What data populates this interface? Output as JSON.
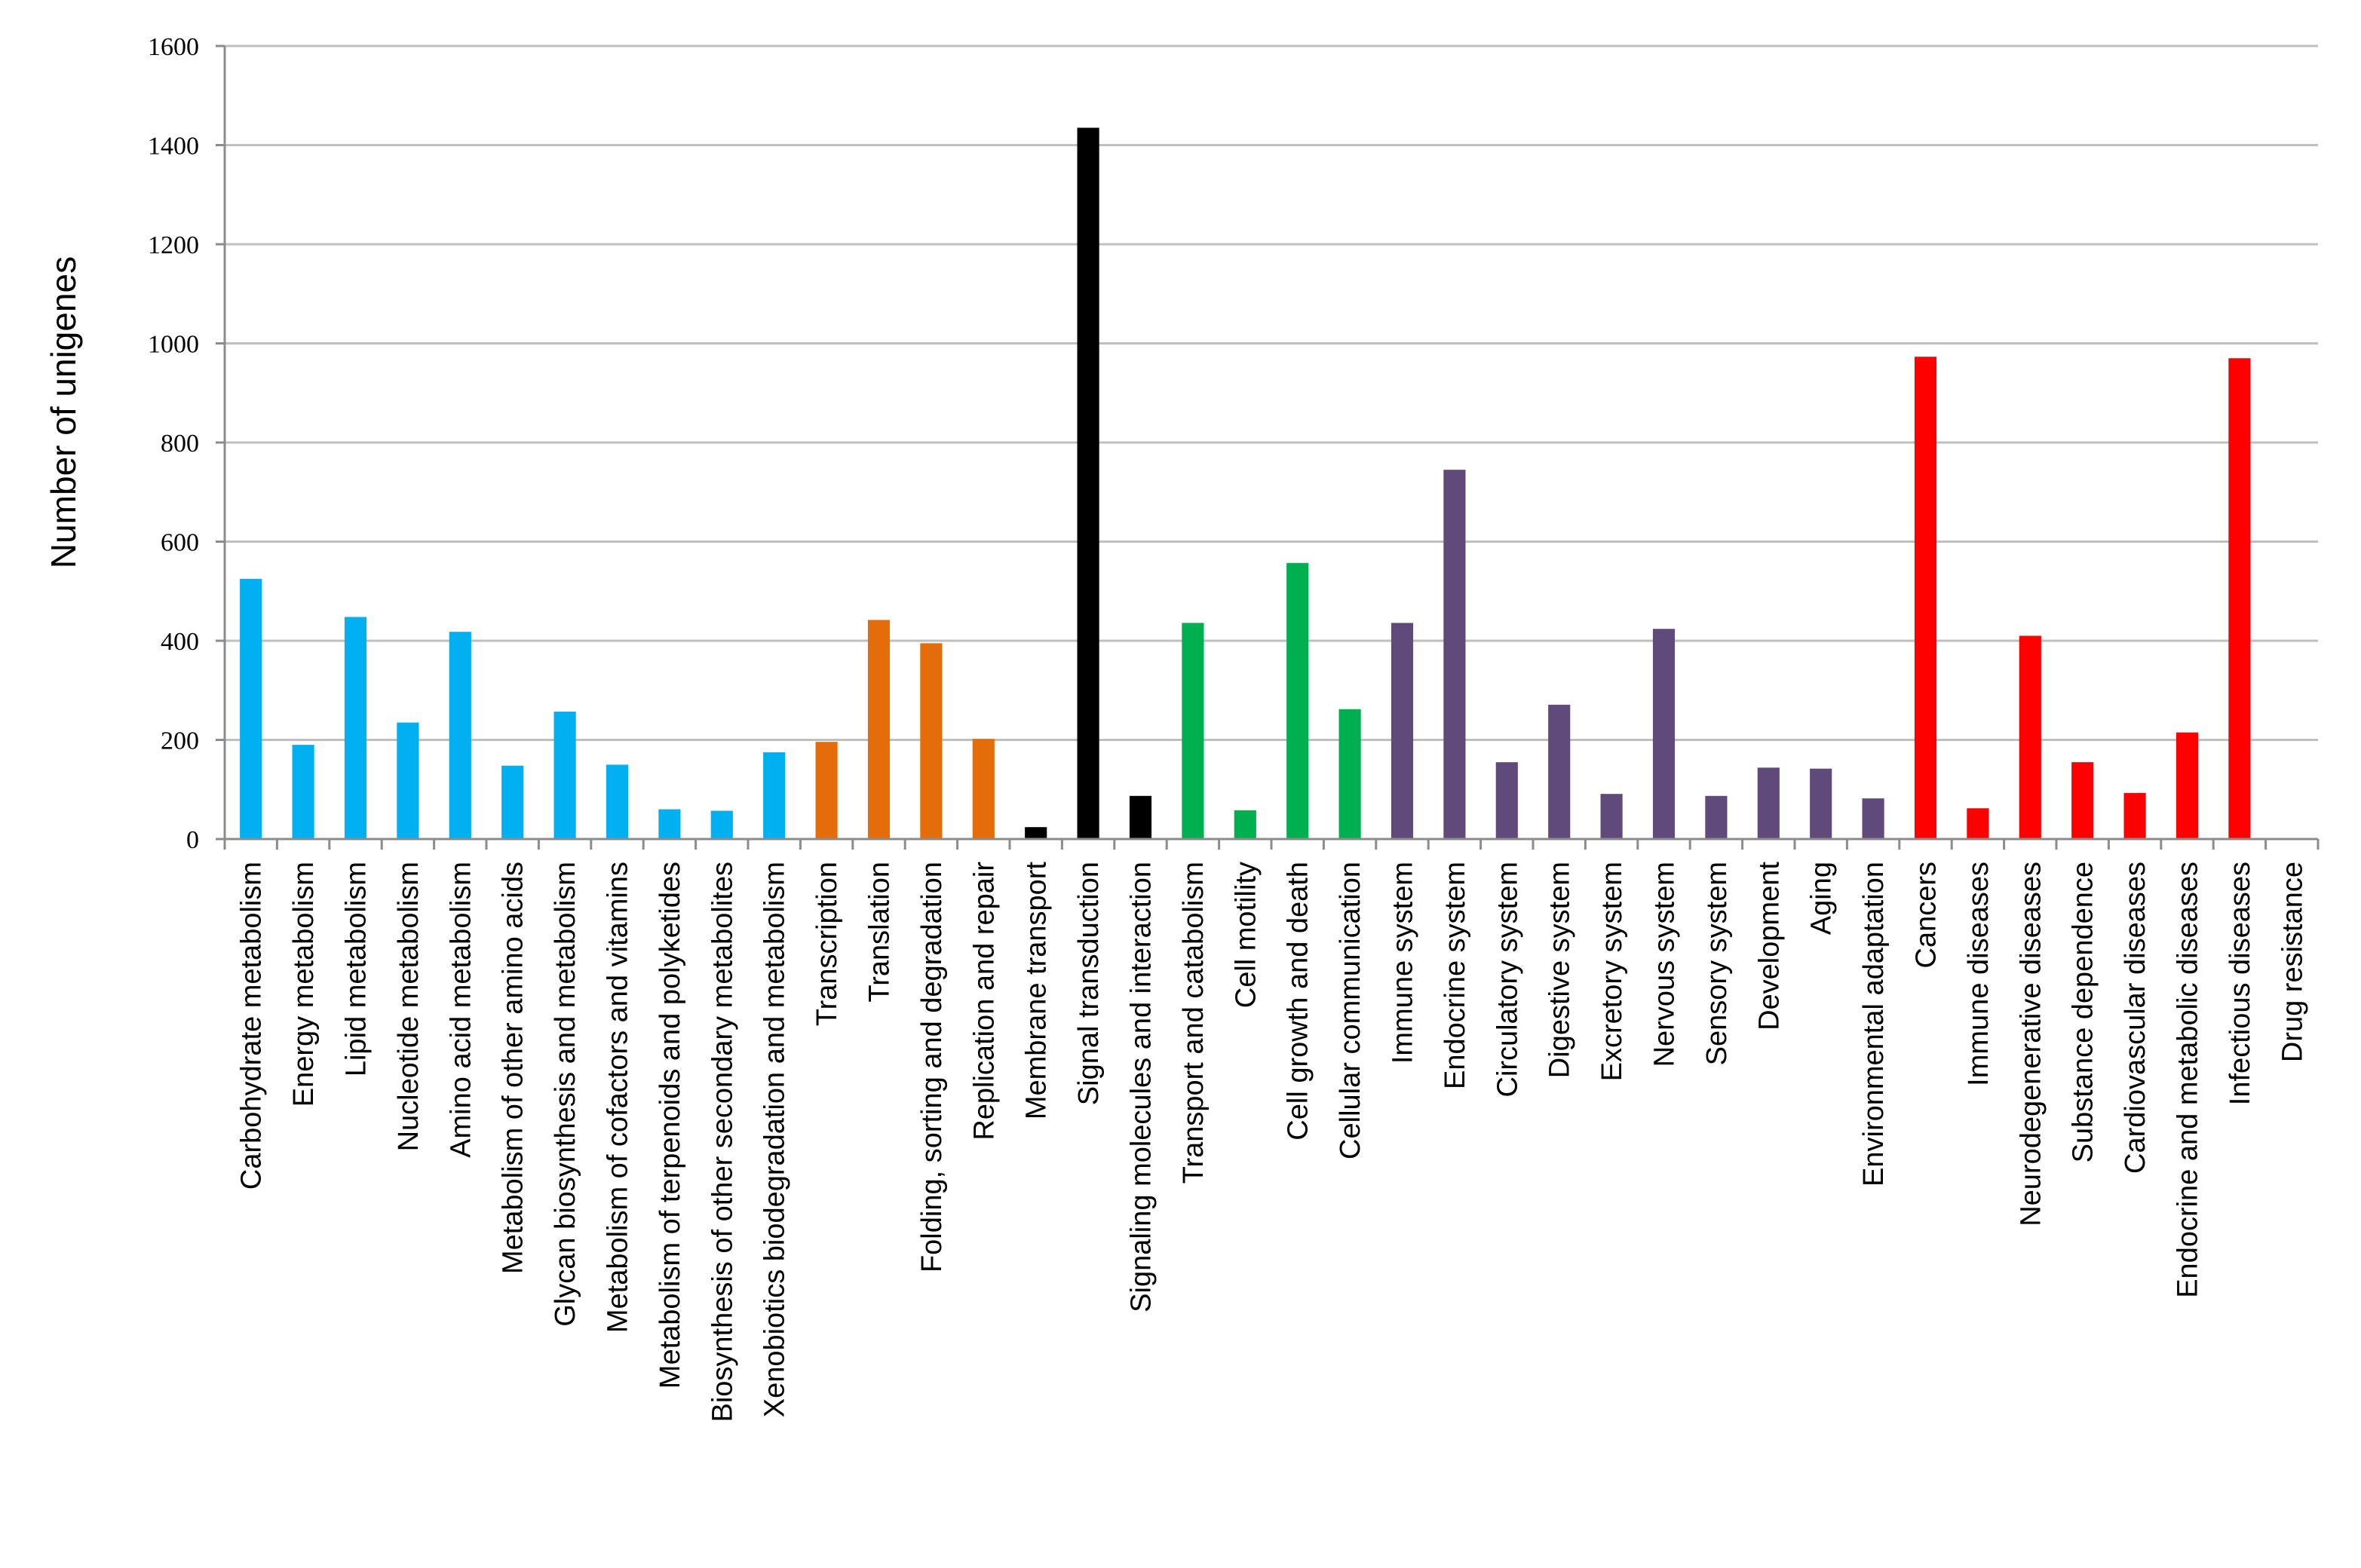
{
  "chart_data": {
    "type": "bar",
    "title": "",
    "xlabel": "",
    "ylabel": "Number of unigenes",
    "ylim": [
      0,
      1600
    ],
    "yticks": [
      0,
      200,
      400,
      600,
      800,
      1000,
      1200,
      1400,
      1600
    ],
    "grid": true,
    "legend": "none",
    "categories": [
      "Carbohydrate metabolism",
      "Energy metabolism",
      "Lipid metabolism",
      "Nucleotide metabolism",
      "Amino acid metabolism",
      "Metabolism of other amino acids",
      "Glycan biosynthesis and metabolism",
      "Metabolism of cofactors and vitamins",
      "Metabolism of terpenoids and polyketides",
      "Biosynthesis of other secondary metabolites",
      "Xenobiotics biodegradation and metabolism",
      "Transcription",
      "Translation",
      "Folding, sorting and degradation",
      "Replication and repair",
      "Membrane transport",
      "Signal transduction",
      "Signaling molecules and interaction",
      "Transport and catabolism",
      "Cell motility",
      "Cell growth and death",
      "Cellular communication",
      "Immune system",
      "Endocrine system",
      "Circulatory system",
      "Digestive system",
      "Excretory system",
      "Nervous system",
      "Sensory system",
      "Development",
      "Aging",
      "Environmental adaptation",
      "Cancers",
      "Immune diseases",
      "Neurodegenerative diseases",
      "Substance dependence",
      "Cardiovascular diseases",
      "Endocrine and metabolic diseases",
      "Infectious diseases",
      "Drug resistance"
    ],
    "values": [
      525,
      190,
      448,
      235,
      418,
      148,
      257,
      150,
      60,
      57,
      175,
      196,
      442,
      395,
      202,
      24,
      1435,
      87,
      436,
      58,
      557,
      262,
      436,
      745,
      155,
      271,
      91,
      424,
      87,
      144,
      142,
      82,
      973,
      62,
      410,
      155,
      93,
      215,
      970,
      0
    ],
    "colors": [
      "#00b0f0",
      "#00b0f0",
      "#00b0f0",
      "#00b0f0",
      "#00b0f0",
      "#00b0f0",
      "#00b0f0",
      "#00b0f0",
      "#00b0f0",
      "#00b0f0",
      "#00b0f0",
      "#e46c0a",
      "#e46c0a",
      "#e46c0a",
      "#e46c0a",
      "#000000",
      "#000000",
      "#000000",
      "#00b050",
      "#00b050",
      "#00b050",
      "#00b050",
      "#604a7b",
      "#604a7b",
      "#604a7b",
      "#604a7b",
      "#604a7b",
      "#604a7b",
      "#604a7b",
      "#604a7b",
      "#604a7b",
      "#604a7b",
      "#ff0000",
      "#ff0000",
      "#ff0000",
      "#ff0000",
      "#ff0000",
      "#ff0000",
      "#ff0000",
      "#ff0000"
    ]
  }
}
